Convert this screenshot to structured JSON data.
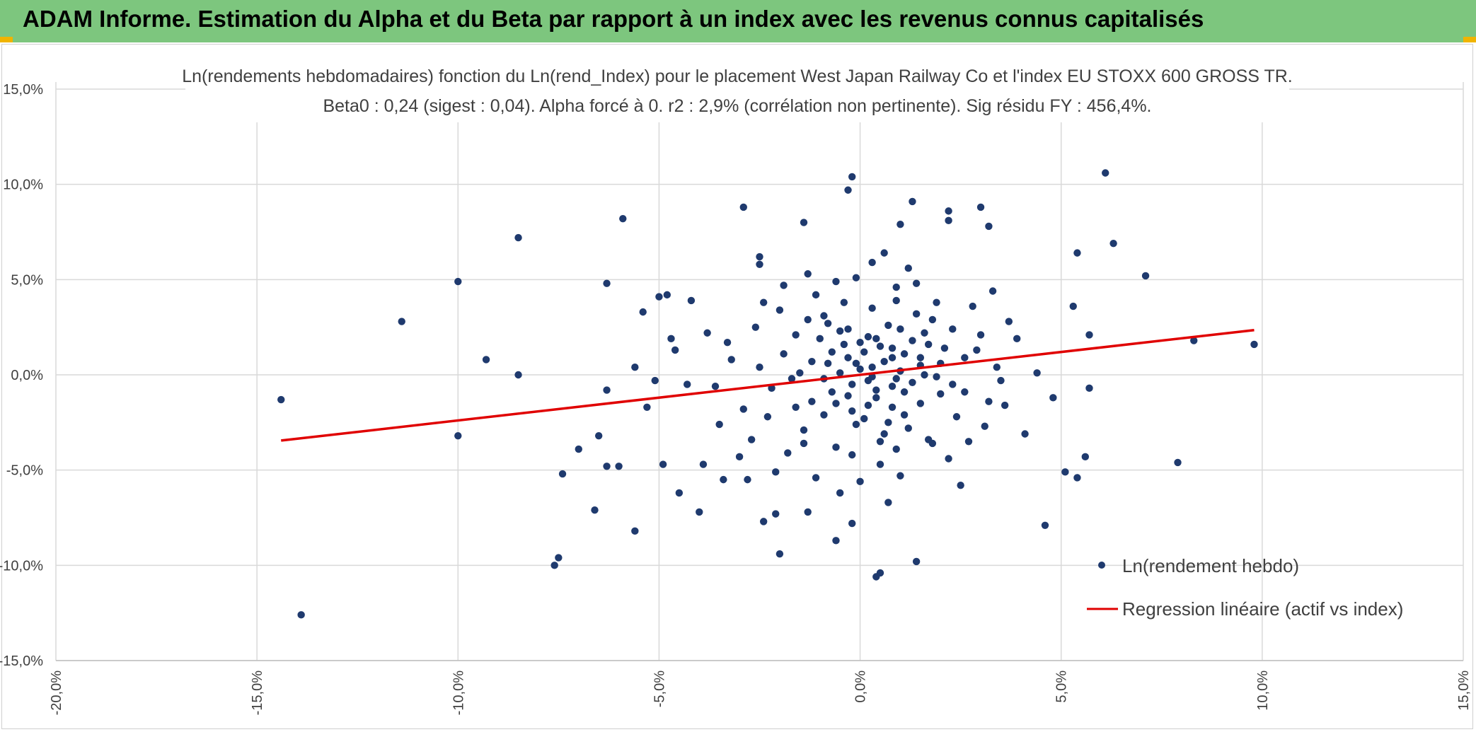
{
  "header": {
    "title": "ADAM Informe. Estimation du Alpha et du Beta par rapport à un index avec les revenus connus capitalisés"
  },
  "chart_data": {
    "type": "scatter",
    "title": "Ln(rendements hebdomadaires) fonction du Ln(rend_Index) pour le placement West Japan Railway Co et l'index EU STOXX 600 GROSS TR.",
    "subtitle": "Beta0 : 0,24 (sigest : 0,04). Alpha forcé à 0. r2 : 2,9% (corrélation non pertinente). Sig résidu FY : 456,4%.",
    "xlabel": "",
    "ylabel": "",
    "xlim": [
      -20,
      15
    ],
    "ylim": [
      -15,
      15
    ],
    "x_ticks": [
      "-20,0%",
      "-15,0%",
      "-10,0%",
      "-5,0%",
      "0,0%",
      "5,0%",
      "10,0%",
      "15,0%"
    ],
    "y_ticks": [
      "15,0%",
      "10,0%",
      "5,0%",
      "0,0%",
      "-5,0%",
      "-10,0%",
      "-15,0%"
    ],
    "grid": true,
    "legend_position": "bottom-right",
    "colors": {
      "points": "#1f3a6e",
      "regression": "#e00000",
      "grid": "#d9d9d9",
      "banner": "#7dc67e"
    },
    "series": [
      {
        "name": "Ln(rendement hebdo)",
        "type": "scatter",
        "points": [
          [
            -14.4,
            -1.3
          ],
          [
            -13.9,
            -12.6
          ],
          [
            -11.4,
            2.8
          ],
          [
            -10.0,
            4.9
          ],
          [
            -10.0,
            -3.2
          ],
          [
            -9.3,
            0.8
          ],
          [
            -8.5,
            7.2
          ],
          [
            -8.5,
            0.0
          ],
          [
            -7.6,
            -10.0
          ],
          [
            -7.5,
            -9.6
          ],
          [
            -7.4,
            -5.2
          ],
          [
            -7.0,
            -3.9
          ],
          [
            -6.6,
            -7.1
          ],
          [
            -6.5,
            -3.2
          ],
          [
            -6.3,
            4.8
          ],
          [
            -6.3,
            -4.8
          ],
          [
            -6.3,
            -0.8
          ],
          [
            -6.0,
            -4.8
          ],
          [
            -5.9,
            8.2
          ],
          [
            -5.6,
            0.4
          ],
          [
            -5.6,
            -8.2
          ],
          [
            -5.4,
            3.3
          ],
          [
            -5.3,
            -1.7
          ],
          [
            -5.1,
            -0.3
          ],
          [
            -5.0,
            4.1
          ],
          [
            -4.9,
            -4.7
          ],
          [
            -4.8,
            4.2
          ],
          [
            -4.7,
            1.9
          ],
          [
            -4.5,
            -6.2
          ],
          [
            -4.2,
            3.9
          ],
          [
            -4.0,
            -7.2
          ],
          [
            -3.9,
            -4.7
          ],
          [
            -3.6,
            -0.6
          ],
          [
            -3.4,
            -5.5
          ],
          [
            -2.9,
            8.8
          ],
          [
            -2.8,
            -5.5
          ],
          [
            -2.5,
            6.2
          ],
          [
            -2.5,
            5.8
          ],
          [
            -2.4,
            -7.7
          ],
          [
            -2.1,
            -7.3
          ],
          [
            -2.0,
            -9.4
          ],
          [
            -1.4,
            8.0
          ],
          [
            -1.3,
            -7.2
          ],
          [
            -0.6,
            -8.7
          ],
          [
            -0.3,
            9.7
          ],
          [
            -0.2,
            10.4
          ],
          [
            -0.2,
            -7.8
          ],
          [
            0.4,
            -10.6
          ],
          [
            0.5,
            -10.4
          ],
          [
            1.0,
            7.9
          ],
          [
            1.3,
            9.1
          ],
          [
            1.4,
            -9.8
          ],
          [
            2.2,
            8.6
          ],
          [
            2.2,
            8.1
          ],
          [
            3.0,
            8.8
          ],
          [
            3.2,
            7.8
          ],
          [
            4.6,
            -7.9
          ],
          [
            5.1,
            -5.1
          ],
          [
            5.3,
            3.6
          ],
          [
            5.4,
            6.4
          ],
          [
            5.4,
            -5.4
          ],
          [
            5.6,
            -4.3
          ],
          [
            5.7,
            2.1
          ],
          [
            5.7,
            -0.7
          ],
          [
            6.1,
            10.6
          ],
          [
            6.3,
            6.9
          ],
          [
            7.1,
            5.2
          ],
          [
            7.9,
            -4.6
          ],
          [
            8.3,
            1.8
          ],
          [
            9.8,
            1.6
          ],
          [
            0.1,
            1.2
          ],
          [
            -0.5,
            2.3
          ],
          [
            0.8,
            -0.6
          ],
          [
            1.5,
            0.9
          ],
          [
            -1.2,
            -1.4
          ],
          [
            0.3,
            3.5
          ],
          [
            -0.8,
            0.6
          ],
          [
            1.1,
            -2.1
          ],
          [
            2.1,
            1.4
          ],
          [
            -1.6,
            2.1
          ],
          [
            0.6,
            -3.1
          ],
          [
            -0.2,
            -1.9
          ],
          [
            1.8,
            2.9
          ],
          [
            -2.2,
            -0.7
          ],
          [
            0.9,
            4.6
          ],
          [
            -0.6,
            -3.8
          ],
          [
            2.6,
            -0.9
          ],
          [
            -1.9,
            1.1
          ],
          [
            0.2,
            -0.3
          ],
          [
            1.3,
            1.8
          ],
          [
            -0.9,
            3.1
          ],
          [
            0.5,
            -4.7
          ],
          [
            3.0,
            2.1
          ],
          [
            -2.6,
            2.5
          ],
          [
            1.7,
            -3.4
          ],
          [
            -0.3,
            0.9
          ],
          [
            0.7,
            2.6
          ],
          [
            -1.4,
            -2.9
          ],
          [
            2.4,
            -2.2
          ],
          [
            -0.1,
            5.1
          ],
          [
            1.0,
            0.2
          ],
          [
            -2.9,
            -1.8
          ],
          [
            3.4,
            0.4
          ],
          [
            -1.1,
            4.2
          ],
          [
            0.4,
            -1.2
          ],
          [
            1.9,
            -0.1
          ],
          [
            -0.7,
            -0.9
          ],
          [
            2.8,
            3.6
          ],
          [
            -3.2,
            0.8
          ],
          [
            0.0,
            -5.6
          ],
          [
            1.2,
            5.6
          ],
          [
            -1.8,
            -4.1
          ],
          [
            3.6,
            -1.6
          ],
          [
            -0.4,
            1.6
          ],
          [
            0.8,
            0.9
          ],
          [
            2.2,
            -4.4
          ],
          [
            -2.4,
            3.8
          ],
          [
            1.5,
            -1.5
          ],
          [
            -0.2,
            -0.5
          ],
          [
            0.3,
            0.4
          ],
          [
            3.9,
            1.9
          ],
          [
            -3.5,
            -2.6
          ],
          [
            1.0,
            -5.3
          ],
          [
            -1.3,
            5.3
          ],
          [
            2.0,
            0.6
          ],
          [
            -0.5,
            -6.2
          ],
          [
            0.6,
            6.4
          ],
          [
            4.1,
            -3.1
          ],
          [
            -3.8,
            2.2
          ],
          [
            1.4,
            3.2
          ],
          [
            -0.9,
            -2.1
          ],
          [
            2.5,
            -5.8
          ],
          [
            -1.5,
            0.1
          ],
          [
            0.2,
            2.0
          ],
          [
            0.9,
            -3.9
          ],
          [
            -2.1,
            -5.1
          ],
          [
            3.3,
            4.4
          ],
          [
            -0.1,
            -2.6
          ],
          [
            1.6,
            0.0
          ],
          [
            -1.0,
            1.9
          ],
          [
            0.4,
            -0.8
          ],
          [
            2.3,
            2.4
          ],
          [
            -2.7,
            -3.4
          ],
          [
            4.4,
            0.1
          ],
          [
            -4.3,
            -0.5
          ],
          [
            0.7,
            -6.7
          ],
          [
            -0.6,
            4.9
          ],
          [
            1.1,
            1.1
          ],
          [
            3.1,
            -2.7
          ],
          [
            -1.7,
            -0.2
          ],
          [
            0.0,
            0.3
          ],
          [
            0.5,
            1.5
          ],
          [
            -0.3,
            -1.1
          ],
          [
            1.3,
            -0.4
          ],
          [
            -1.2,
            0.7
          ],
          [
            0.8,
            -1.7
          ],
          [
            2.0,
            -1.0
          ],
          [
            -0.8,
            2.7
          ],
          [
            0.1,
            -2.3
          ],
          [
            1.6,
            2.2
          ],
          [
            -2.0,
            3.4
          ],
          [
            0.3,
            5.9
          ],
          [
            2.9,
            1.3
          ],
          [
            -3.0,
            -4.3
          ],
          [
            1.2,
            -2.8
          ],
          [
            -0.4,
            3.8
          ],
          [
            0.6,
            0.7
          ],
          [
            1.8,
            -3.6
          ],
          [
            -1.4,
            -3.6
          ],
          [
            3.7,
            2.8
          ],
          [
            -0.7,
            1.2
          ],
          [
            0.9,
            3.9
          ],
          [
            -2.3,
            -2.2
          ],
          [
            2.6,
            0.9
          ],
          [
            -0.2,
            -4.2
          ],
          [
            1.4,
            4.8
          ],
          [
            -1.1,
            -5.4
          ],
          [
            0.4,
            1.9
          ],
          [
            4.8,
            -1.2
          ],
          [
            -4.6,
            1.3
          ],
          [
            0.2,
            -1.6
          ],
          [
            1.0,
            2.4
          ],
          [
            -0.9,
            -0.2
          ],
          [
            2.3,
            -0.5
          ],
          [
            -1.9,
            4.7
          ],
          [
            0.7,
            -2.5
          ],
          [
            3.5,
            -0.3
          ],
          [
            -3.3,
            1.7
          ],
          [
            1.7,
            1.6
          ],
          [
            -0.5,
            0.1
          ],
          [
            0.0,
            1.7
          ],
          [
            1.1,
            -0.9
          ],
          [
            -1.6,
            -1.7
          ],
          [
            2.7,
            -3.5
          ],
          [
            -0.3,
            2.4
          ],
          [
            0.5,
            -3.5
          ],
          [
            1.9,
            3.8
          ],
          [
            -2.5,
            0.4
          ],
          [
            0.8,
            1.4
          ],
          [
            -1.3,
            2.9
          ],
          [
            3.2,
            -1.4
          ],
          [
            0.3,
            -0.1
          ],
          [
            -0.6,
            -1.5
          ],
          [
            1.5,
            0.5
          ],
          [
            -0.1,
            0.6
          ],
          [
            0.9,
            -0.2
          ]
        ]
      },
      {
        "name": "Regression linéaire (actif vs index)",
        "type": "line",
        "points": [
          [
            -14.4,
            -3.45
          ],
          [
            9.8,
            2.35
          ]
        ]
      }
    ]
  }
}
